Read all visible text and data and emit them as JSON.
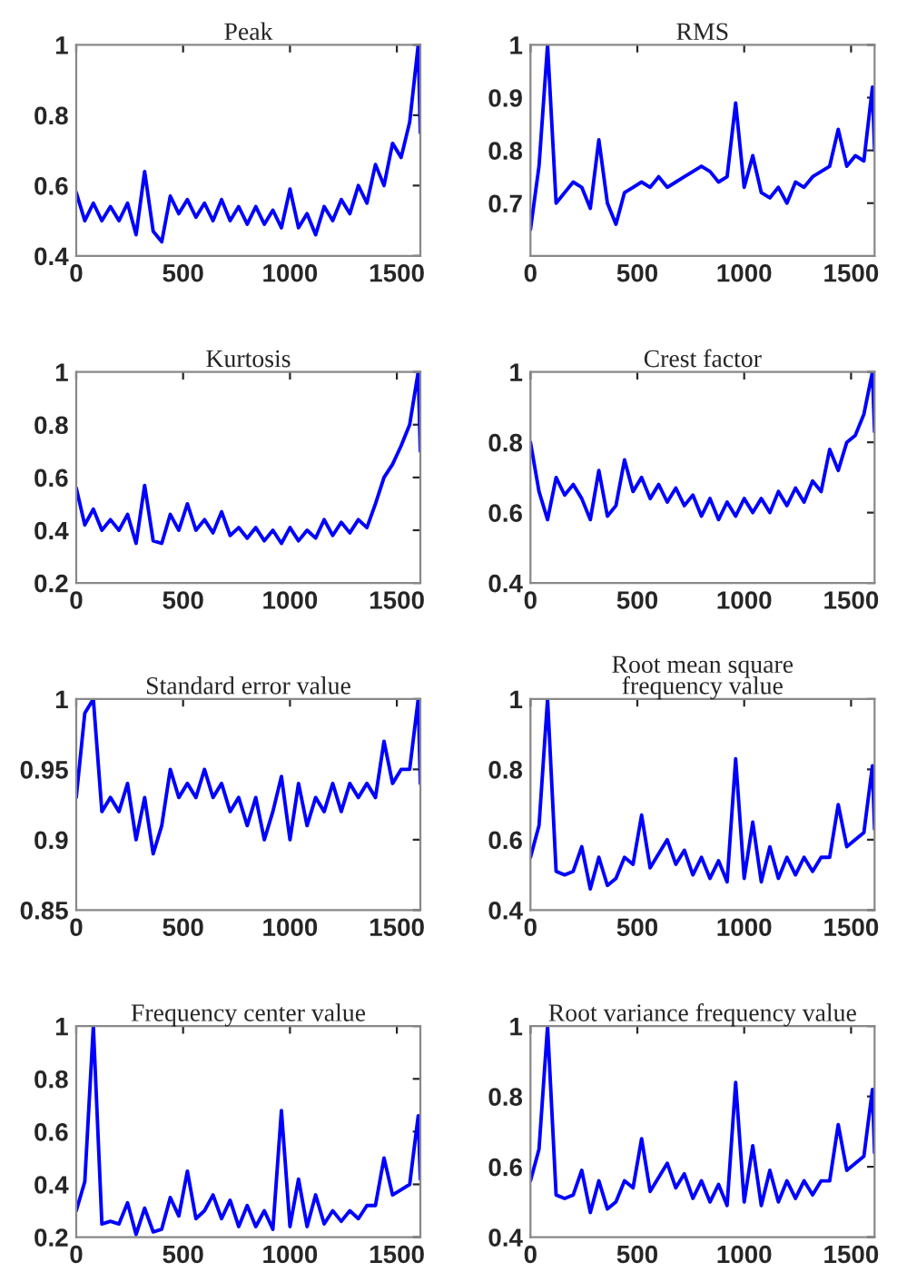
{
  "chart_data": [
    {
      "type": "line",
      "title": "Peak",
      "xlim": [
        0,
        1610
      ],
      "xticks": [
        0,
        500,
        1000,
        1500
      ],
      "ylim": [
        0.4,
        1
      ],
      "yticks": [
        0.4,
        0.6,
        0.8,
        1
      ],
      "x": [
        0,
        40,
        80,
        120,
        160,
        200,
        240,
        280,
        320,
        360,
        400,
        440,
        480,
        520,
        560,
        600,
        640,
        680,
        720,
        760,
        800,
        840,
        880,
        920,
        960,
        1000,
        1040,
        1080,
        1120,
        1160,
        1200,
        1240,
        1280,
        1320,
        1360,
        1400,
        1440,
        1480,
        1520,
        1560,
        1600,
        1610
      ],
      "series": [
        {
          "color": "#0000ff",
          "values": [
            0.58,
            0.5,
            0.55,
            0.5,
            0.54,
            0.5,
            0.55,
            0.46,
            0.64,
            0.47,
            0.44,
            0.57,
            0.52,
            0.56,
            0.51,
            0.55,
            0.5,
            0.56,
            0.5,
            0.54,
            0.49,
            0.54,
            0.49,
            0.53,
            0.48,
            0.59,
            0.48,
            0.52,
            0.46,
            0.54,
            0.5,
            0.56,
            0.52,
            0.6,
            0.55,
            0.66,
            0.6,
            0.72,
            0.68,
            0.78,
            1.0,
            0.75
          ]
        }
      ]
    },
    {
      "type": "line",
      "title": "RMS",
      "xlim": [
        0,
        1610
      ],
      "xticks": [
        0,
        500,
        1000,
        1500
      ],
      "ylim": [
        0.6,
        1
      ],
      "yticks": [
        0.7,
        0.8,
        0.9,
        1
      ],
      "x": [
        0,
        40,
        80,
        120,
        160,
        200,
        240,
        280,
        320,
        360,
        400,
        440,
        480,
        520,
        560,
        600,
        640,
        680,
        720,
        760,
        800,
        840,
        880,
        920,
        960,
        1000,
        1040,
        1080,
        1120,
        1160,
        1200,
        1240,
        1280,
        1320,
        1360,
        1400,
        1440,
        1480,
        1520,
        1560,
        1600,
        1610
      ],
      "series": [
        {
          "color": "#0000ff",
          "values": [
            0.65,
            0.77,
            1.0,
            0.7,
            0.72,
            0.74,
            0.73,
            0.69,
            0.82,
            0.7,
            0.66,
            0.72,
            0.73,
            0.74,
            0.73,
            0.75,
            0.73,
            0.74,
            0.75,
            0.76,
            0.77,
            0.76,
            0.74,
            0.75,
            0.89,
            0.73,
            0.79,
            0.72,
            0.71,
            0.73,
            0.7,
            0.74,
            0.73,
            0.75,
            0.76,
            0.77,
            0.84,
            0.77,
            0.79,
            0.78,
            0.92,
            0.8
          ]
        }
      ]
    },
    {
      "type": "line",
      "title": "Kurtosis",
      "xlim": [
        0,
        1610
      ],
      "xticks": [
        0,
        500,
        1000,
        1500
      ],
      "ylim": [
        0.2,
        1
      ],
      "yticks": [
        0.2,
        0.4,
        0.6,
        0.8,
        1
      ],
      "x": [
        0,
        40,
        80,
        120,
        160,
        200,
        240,
        280,
        320,
        360,
        400,
        440,
        480,
        520,
        560,
        600,
        640,
        680,
        720,
        760,
        800,
        840,
        880,
        920,
        960,
        1000,
        1040,
        1080,
        1120,
        1160,
        1200,
        1240,
        1280,
        1320,
        1360,
        1400,
        1440,
        1480,
        1520,
        1560,
        1600,
        1610
      ],
      "series": [
        {
          "color": "#0000ff",
          "values": [
            0.56,
            0.42,
            0.48,
            0.4,
            0.44,
            0.4,
            0.46,
            0.35,
            0.57,
            0.36,
            0.35,
            0.46,
            0.4,
            0.5,
            0.4,
            0.44,
            0.39,
            0.47,
            0.38,
            0.41,
            0.37,
            0.41,
            0.36,
            0.4,
            0.35,
            0.41,
            0.36,
            0.4,
            0.37,
            0.44,
            0.38,
            0.43,
            0.39,
            0.44,
            0.41,
            0.5,
            0.6,
            0.65,
            0.72,
            0.8,
            1.0,
            0.7
          ]
        }
      ]
    },
    {
      "type": "line",
      "title": "Crest factor",
      "xlim": [
        0,
        1610
      ],
      "xticks": [
        0,
        500,
        1000,
        1500
      ],
      "ylim": [
        0.4,
        1
      ],
      "yticks": [
        0.4,
        0.6,
        0.8,
        1
      ],
      "x": [
        0,
        40,
        80,
        120,
        160,
        200,
        240,
        280,
        320,
        360,
        400,
        440,
        480,
        520,
        560,
        600,
        640,
        680,
        720,
        760,
        800,
        840,
        880,
        920,
        960,
        1000,
        1040,
        1080,
        1120,
        1160,
        1200,
        1240,
        1280,
        1320,
        1360,
        1400,
        1440,
        1480,
        1520,
        1560,
        1600,
        1610
      ],
      "series": [
        {
          "color": "#0000ff",
          "values": [
            0.8,
            0.66,
            0.58,
            0.7,
            0.65,
            0.68,
            0.64,
            0.58,
            0.72,
            0.59,
            0.62,
            0.75,
            0.66,
            0.7,
            0.64,
            0.68,
            0.63,
            0.67,
            0.62,
            0.65,
            0.59,
            0.64,
            0.58,
            0.63,
            0.59,
            0.64,
            0.6,
            0.64,
            0.6,
            0.66,
            0.62,
            0.67,
            0.63,
            0.69,
            0.66,
            0.78,
            0.72,
            0.8,
            0.82,
            0.88,
            1.0,
            0.83
          ]
        }
      ]
    },
    {
      "type": "line",
      "title": "Standard error value",
      "xlim": [
        0,
        1610
      ],
      "xticks": [
        0,
        500,
        1000,
        1500
      ],
      "ylim": [
        0.85,
        1
      ],
      "yticks": [
        0.85,
        0.9,
        0.95,
        1
      ],
      "x": [
        0,
        40,
        80,
        120,
        160,
        200,
        240,
        280,
        320,
        360,
        400,
        440,
        480,
        520,
        560,
        600,
        640,
        680,
        720,
        760,
        800,
        840,
        880,
        920,
        960,
        1000,
        1040,
        1080,
        1120,
        1160,
        1200,
        1240,
        1280,
        1320,
        1360,
        1400,
        1440,
        1480,
        1520,
        1560,
        1600,
        1610
      ],
      "series": [
        {
          "color": "#0000ff",
          "values": [
            0.93,
            0.99,
            1.0,
            0.92,
            0.93,
            0.92,
            0.94,
            0.9,
            0.93,
            0.89,
            0.91,
            0.95,
            0.93,
            0.94,
            0.93,
            0.95,
            0.93,
            0.94,
            0.92,
            0.93,
            0.91,
            0.93,
            0.9,
            0.92,
            0.945,
            0.9,
            0.94,
            0.91,
            0.93,
            0.92,
            0.94,
            0.92,
            0.94,
            0.93,
            0.94,
            0.93,
            0.97,
            0.94,
            0.95,
            0.95,
            1.0,
            0.94
          ]
        }
      ]
    },
    {
      "type": "line",
      "title": "Root mean square\nfrequency value",
      "xlim": [
        0,
        1610
      ],
      "xticks": [
        0,
        500,
        1000,
        1500
      ],
      "ylim": [
        0.4,
        1
      ],
      "yticks": [
        0.4,
        0.6,
        0.8,
        1
      ],
      "x": [
        0,
        40,
        80,
        120,
        160,
        200,
        240,
        280,
        320,
        360,
        400,
        440,
        480,
        520,
        560,
        600,
        640,
        680,
        720,
        760,
        800,
        840,
        880,
        920,
        960,
        1000,
        1040,
        1080,
        1120,
        1160,
        1200,
        1240,
        1280,
        1320,
        1360,
        1400,
        1440,
        1480,
        1520,
        1560,
        1600,
        1610
      ],
      "series": [
        {
          "color": "#0000ff",
          "values": [
            0.55,
            0.64,
            1.0,
            0.51,
            0.5,
            0.51,
            0.58,
            0.46,
            0.55,
            0.47,
            0.49,
            0.55,
            0.53,
            0.67,
            0.52,
            0.56,
            0.6,
            0.53,
            0.57,
            0.5,
            0.55,
            0.49,
            0.54,
            0.48,
            0.83,
            0.49,
            0.65,
            0.48,
            0.58,
            0.49,
            0.55,
            0.5,
            0.55,
            0.51,
            0.55,
            0.55,
            0.7,
            0.58,
            0.6,
            0.62,
            0.81,
            0.63
          ]
        }
      ]
    },
    {
      "type": "line",
      "title": "Frequency center value",
      "xlim": [
        0,
        1610
      ],
      "xticks": [
        0,
        500,
        1000,
        1500
      ],
      "ylim": [
        0.2,
        1
      ],
      "yticks": [
        0.2,
        0.4,
        0.6,
        0.8,
        1
      ],
      "x": [
        0,
        40,
        80,
        120,
        160,
        200,
        240,
        280,
        320,
        360,
        400,
        440,
        480,
        520,
        560,
        600,
        640,
        680,
        720,
        760,
        800,
        840,
        880,
        920,
        960,
        1000,
        1040,
        1080,
        1120,
        1160,
        1200,
        1240,
        1280,
        1320,
        1360,
        1400,
        1440,
        1480,
        1520,
        1560,
        1600,
        1610
      ],
      "series": [
        {
          "color": "#0000ff",
          "values": [
            0.3,
            0.41,
            1.0,
            0.25,
            0.26,
            0.25,
            0.33,
            0.21,
            0.31,
            0.22,
            0.23,
            0.35,
            0.28,
            0.45,
            0.27,
            0.3,
            0.36,
            0.27,
            0.34,
            0.24,
            0.32,
            0.24,
            0.3,
            0.23,
            0.68,
            0.24,
            0.42,
            0.24,
            0.36,
            0.25,
            0.3,
            0.26,
            0.3,
            0.27,
            0.32,
            0.32,
            0.5,
            0.36,
            0.38,
            0.4,
            0.66,
            0.42
          ]
        }
      ]
    },
    {
      "type": "line",
      "title": "Root variance frequency value",
      "xlim": [
        0,
        1610
      ],
      "xticks": [
        0,
        500,
        1000,
        1500
      ],
      "ylim": [
        0.4,
        1
      ],
      "yticks": [
        0.4,
        0.6,
        0.8,
        1
      ],
      "x": [
        0,
        40,
        80,
        120,
        160,
        200,
        240,
        280,
        320,
        360,
        400,
        440,
        480,
        520,
        560,
        600,
        640,
        680,
        720,
        760,
        800,
        840,
        880,
        920,
        960,
        1000,
        1040,
        1080,
        1120,
        1160,
        1200,
        1240,
        1280,
        1320,
        1360,
        1400,
        1440,
        1480,
        1520,
        1560,
        1600,
        1610
      ],
      "series": [
        {
          "color": "#0000ff",
          "values": [
            0.56,
            0.65,
            1.0,
            0.52,
            0.51,
            0.52,
            0.59,
            0.47,
            0.56,
            0.48,
            0.5,
            0.56,
            0.54,
            0.68,
            0.53,
            0.57,
            0.61,
            0.54,
            0.58,
            0.51,
            0.56,
            0.5,
            0.55,
            0.49,
            0.84,
            0.5,
            0.66,
            0.49,
            0.59,
            0.5,
            0.56,
            0.51,
            0.56,
            0.52,
            0.56,
            0.56,
            0.72,
            0.59,
            0.61,
            0.63,
            0.82,
            0.64
          ]
        }
      ]
    }
  ]
}
